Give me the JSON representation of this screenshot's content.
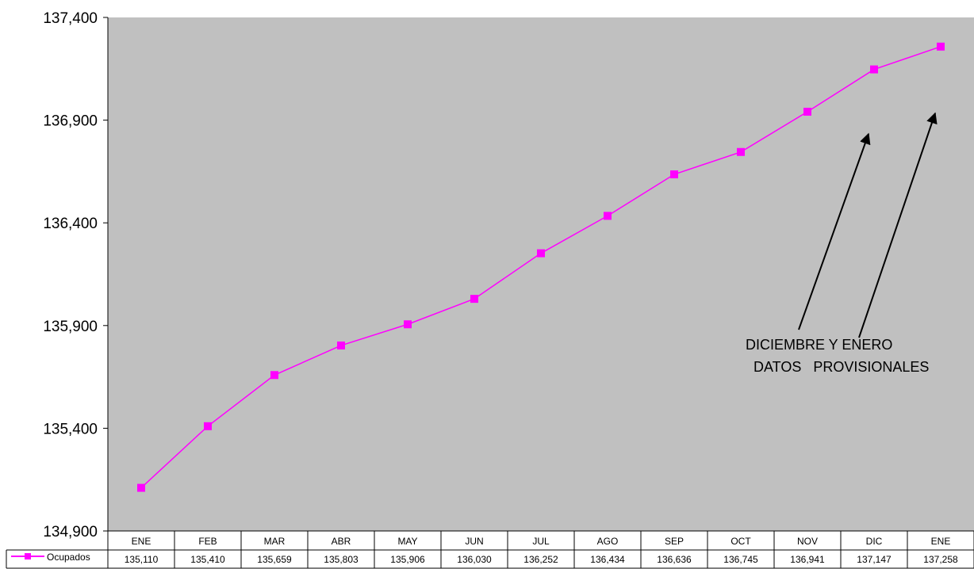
{
  "chart_data": {
    "type": "line",
    "categories": [
      "ENE",
      "FEB",
      "MAR",
      "ABR",
      "MAY",
      "JUN",
      "JUL",
      "AGO",
      "SEP",
      "OCT",
      "NOV",
      "DIC",
      "ENE"
    ],
    "series": [
      {
        "name": "Ocupados",
        "values": [
          135110,
          135410,
          135659,
          135803,
          135906,
          136030,
          136252,
          136434,
          136636,
          136745,
          136941,
          137147,
          137258
        ],
        "value_labels": [
          "135,110",
          "135,410",
          "135,659",
          "135,803",
          "135,906",
          "136,030",
          "136,252",
          "136,434",
          "136,636",
          "136,745",
          "136,941",
          "137,147",
          "137,258"
        ],
        "color": "#ff00ff",
        "marker": "square"
      }
    ],
    "ylim": [
      134900,
      137400
    ],
    "yticks": [
      "134,900",
      "135,400",
      "135,900",
      "136,400",
      "136,900",
      "137,400"
    ],
    "ytick_values": [
      134900,
      135400,
      135900,
      136400,
      136900,
      137400
    ],
    "grid": false,
    "plot_background": "#c0c0c0",
    "legend": "data-table",
    "annotations": [
      {
        "lines": [
          "DICIEMBRE Y ENERO",
          "DATOS   PROVISIONALES"
        ],
        "arrows_to": [
          "DIC",
          "ENE"
        ]
      }
    ]
  }
}
